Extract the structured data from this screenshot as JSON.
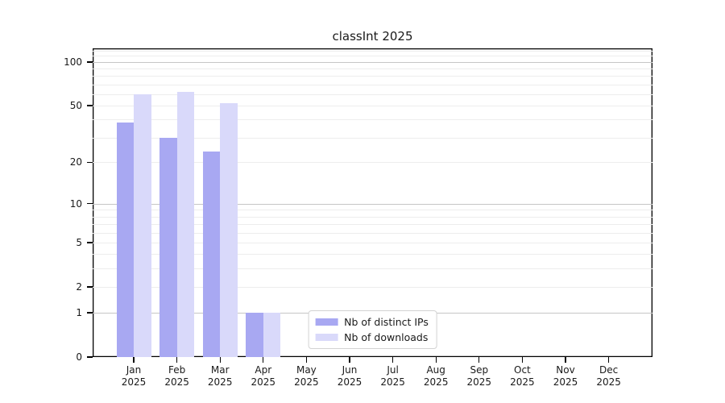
{
  "title": "classInt 2025",
  "chart_data": {
    "type": "bar",
    "title": "classInt 2025",
    "categories": [
      "Jan 2025",
      "Feb 2025",
      "Mar 2025",
      "Apr 2025",
      "May 2025",
      "Jun 2025",
      "Jul 2025",
      "Aug 2025",
      "Sep 2025",
      "Oct 2025",
      "Nov 2025",
      "Dec 2025"
    ],
    "series": [
      {
        "name": "Nb of distinct IPs",
        "color": "#a8a8f2",
        "values": [
          38,
          30,
          24,
          1,
          0,
          0,
          0,
          0,
          0,
          0,
          0,
          0
        ]
      },
      {
        "name": "Nb of downloads",
        "color": "#d9d9fa",
        "values": [
          60,
          62,
          52,
          1,
          0,
          0,
          0,
          0,
          0,
          0,
          0,
          0
        ]
      }
    ],
    "yscale": "log10(1+x)",
    "yticks": [
      0,
      1,
      2,
      5,
      10,
      20,
      50,
      100
    ],
    "major_gridlines": [
      1,
      10,
      100
    ],
    "ylim": [
      0,
      124
    ],
    "xlabel": "",
    "ylabel": "",
    "grid": "horizontal",
    "legend_position": "inside-bottom-center"
  },
  "colors": {
    "bar_ips": "#a8a8f2",
    "bar_downloads": "#d9d9fa",
    "grid_major": "#c6c6c6",
    "grid_minor": "#ededed",
    "axis": "#000000",
    "text": "#1a1a1a",
    "legend_border": "#d3d3d3",
    "background": "#ffffff"
  }
}
